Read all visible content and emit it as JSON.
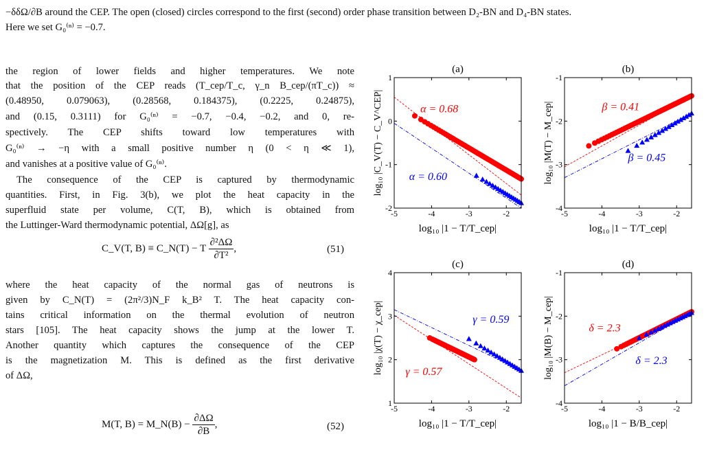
{
  "caption_end": {
    "line1": "−δδΩ/∂B around the CEP. The open (closed) circles correspond to the first (second) order phase transition between D₂-BN and D₄-BN states.",
    "line2": "Here we set G₀⁽ⁿ⁾ = −0.7."
  },
  "body": {
    "p1": [
      "the region of lower fields and higher temperatures. We note",
      "that the position of the CEP reads (T_cep/T_c, γ_n B_cep/(πT_c)) ≈",
      "(0.48950, 0.079063), (0.28568, 0.184375), (0.2225, 0.24875),",
      "and (0.15, 0.3111) for G₀⁽ⁿ⁾ = −0.7, −0.4, −0.2, and 0, re-",
      "spectively. The CEP shifts toward low temperatures with",
      "G₀⁽ⁿ⁾ → −η with a small positive number η (0 < η ≪ 1),",
      "and vanishes at a positive value of G₀⁽ⁿ⁾."
    ],
    "p2": [
      "The consequence of the CEP is captured by thermodynamic",
      "quantities. First, in Fig. 3(b), we plot the heat capacity in the",
      "superfluid state per volume, C(T, B), which is obtained from",
      "the Luttinger-Ward thermodynamic potential, ΔΩ[g], as"
    ],
    "eq51": {
      "lhs": "C_V(T, B) ≡ C_N(T) − T",
      "num": "∂²ΔΩ",
      "den": "∂T²",
      "tail": ",",
      "number": "(51)"
    },
    "p3": [
      "where the heat capacity of the normal gas of neutrons is",
      "given by C_N(T) = (2π²/3)N_F k_B² T. The heat capacity con-",
      "tains critical information on the thermal evolution of neutron",
      "stars [105]. The heat capacity shows the jump at the lower T.",
      "Another quantity which captures the consequence of the CEP",
      "is the magnetization M. This is defined as the first derivative",
      "of ΔΩ,"
    ],
    "eq52": {
      "lhs": "M(T, B) = M_N(B) −",
      "num": "∂ΔΩ",
      "den": "∂B",
      "tail": ",",
      "number": "(52)"
    },
    "ref_fig": "3",
    "ref_cite": "105"
  },
  "chart_data": [
    {
      "type": "scatter",
      "panel_label": "(a)",
      "xlabel": "log₁₀ |1 − T/T_cep|",
      "ylabel": "log₁₀ |C_V(T) − C_V^CEP|",
      "xlim": [
        -5,
        -1.6
      ],
      "ylim": [
        -2,
        1
      ],
      "xticks": [
        "-5",
        "-4",
        "-3",
        "-2"
      ],
      "yticks": [
        "-2",
        "-1",
        "0",
        "1"
      ],
      "series": [
        {
          "name": "α = 0.68",
          "color": "#ff0000",
          "marker": "circle",
          "x_range": [
            -4.45,
            -1.6
          ],
          "y_start": 0.12,
          "y_end": -1.33,
          "fit": {
            "x0": -5,
            "y0": 0.55,
            "x1": -1.6,
            "y1": -1.7
          }
        },
        {
          "name": "α = 0.60",
          "color": "#0000ff",
          "marker": "triangle",
          "x_range": [
            -2.8,
            -1.6
          ],
          "y_start": -1.25,
          "y_end": -1.88,
          "fit": {
            "x0": -5,
            "y0": -0.05,
            "x1": -1.6,
            "y1": -2.0
          }
        }
      ]
    },
    {
      "type": "scatter",
      "panel_label": "(b)",
      "xlabel": "log₁₀ |1 − T/T_cep|",
      "ylabel": "log₁₀ |M(T) − M_cep|",
      "xlim": [
        -5,
        -1.6
      ],
      "ylim": [
        -4,
        -1
      ],
      "xticks": [
        "-5",
        "-4",
        "-3",
        "-2"
      ],
      "yticks": [
        "-4",
        "-3",
        "-2",
        "-1"
      ],
      "series": [
        {
          "name": "β = 0.41",
          "color": "#ff0000",
          "marker": "circle",
          "x_range": [
            -4.35,
            -1.6
          ],
          "y_start": -2.57,
          "y_end": -1.42,
          "fit": {
            "x0": -5,
            "y0": -3.05,
            "x1": -1.6,
            "y1": -1.42
          }
        },
        {
          "name": "β = 0.45",
          "color": "#0000ff",
          "marker": "triangle",
          "x_range": [
            -3.3,
            -1.6
          ],
          "y_start": -2.68,
          "y_end": -1.82,
          "fit": {
            "x0": -5,
            "y0": -3.3,
            "x1": -1.6,
            "y1": -1.82
          }
        }
      ]
    },
    {
      "type": "scatter",
      "panel_label": "(c)",
      "xlabel": "log₁₀ |1 − T/T_cep|",
      "ylabel": "log₁₀ |χ(T) − χ_cep|",
      "xlim": [
        -5,
        -1.6
      ],
      "ylim": [
        1,
        4
      ],
      "xticks": [
        "-5",
        "-4",
        "-3",
        "-2"
      ],
      "yticks": [
        "1",
        "2",
        "3",
        "4"
      ],
      "series": [
        {
          "name": "γ = 0.59",
          "color": "#0000ff",
          "marker": "triangle",
          "x_range": [
            -3.0,
            -1.6
          ],
          "y_start": 2.48,
          "y_end": 1.75,
          "fit": {
            "x0": -5,
            "y0": 3.15,
            "x1": -1.6,
            "y1": 1.75
          }
        },
        {
          "name": "γ = 0.57",
          "color": "#ff0000",
          "marker": "circle",
          "x_range": [
            -4.05,
            -2.85
          ],
          "y_start": 2.5,
          "y_end": 2.0,
          "fit": {
            "x0": -5,
            "y0": 3.02,
            "x1": -1.6,
            "y1": 1.12
          }
        }
      ]
    },
    {
      "type": "scatter",
      "panel_label": "(d)",
      "xlabel": "log₁₀ |1 − B/B_cep|",
      "ylabel": "log₁₀ |M(B) − M_cep|",
      "xlim": [
        -5,
        -1.6
      ],
      "ylim": [
        -4,
        -1
      ],
      "xticks": [
        "-5",
        "-4",
        "-3",
        "-2"
      ],
      "yticks": [
        "-4",
        "-3",
        "-2",
        "-1"
      ],
      "series": [
        {
          "name": "δ = 2.3",
          "color": "#ff0000",
          "marker": "circle",
          "x_range": [
            -3.6,
            -1.6
          ],
          "y_start": -2.75,
          "y_end": -1.9,
          "fit": {
            "x0": -5,
            "y0": -3.3,
            "x1": -1.6,
            "y1": -1.9
          }
        },
        {
          "name": "δ = 2.3",
          "color": "#0000ff",
          "marker": "triangle",
          "x_range": [
            -3.0,
            -1.6
          ],
          "y_start": -2.5,
          "y_end": -1.92,
          "fit": {
            "x0": -5,
            "y0": -3.6,
            "x1": -1.6,
            "y1": -1.92
          }
        }
      ]
    }
  ]
}
